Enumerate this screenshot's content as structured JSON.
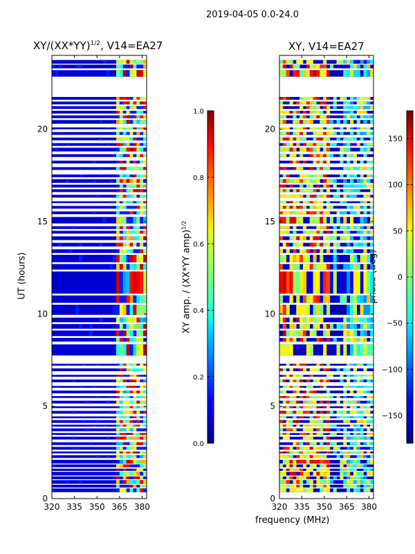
{
  "suptitle": "2019-04-05 0.0-24.0",
  "chart_data": [
    {
      "type": "heatmap",
      "title_main": "XY/(XX*YY)",
      "title_sup": "1/2",
      "title_tail": ", V14=EA27",
      "xlabel": "",
      "ylabel": "UT (hours)",
      "xlim": [
        320,
        383
      ],
      "ylim": [
        0,
        24
      ],
      "xticks": [
        "320",
        "335",
        "350",
        "365",
        "380"
      ],
      "xtick_values": [
        320,
        335,
        350,
        365,
        380
      ],
      "yticks": [
        "0",
        "5",
        "10",
        "15",
        "20"
      ],
      "ytick_values": [
        0,
        5,
        10,
        15,
        20
      ],
      "colorbar": {
        "label_main": "XY amp. / (XX*YY amp)",
        "label_sup": "1/2",
        "range": [
          0.0,
          1.0
        ],
        "ticks": [
          "0.0",
          "0.2",
          "0.4",
          "0.6",
          "0.8",
          "1.0"
        ],
        "tick_values": [
          0.0,
          0.2,
          0.4,
          0.6,
          0.8,
          1.0
        ],
        "colormap": "jet"
      },
      "data_description_band_mhz": [
        362,
        382
      ],
      "background_value": 0.05,
      "band_values": [
        0.35,
        0.45,
        0.55,
        0.65
      ]
    },
    {
      "type": "heatmap",
      "title_main": "XY, V14=EA27",
      "title_sup": "",
      "title_tail": "",
      "xlabel": "frequency (MHz)",
      "ylabel": "",
      "xlim": [
        320,
        383
      ],
      "ylim": [
        0,
        24
      ],
      "xticks": [
        "320",
        "335",
        "350",
        "365",
        "380"
      ],
      "xtick_values": [
        320,
        335,
        350,
        365,
        380
      ],
      "yticks": [
        "0",
        "5",
        "10",
        "15",
        "20"
      ],
      "ytick_values": [
        0,
        5,
        10,
        15,
        20
      ],
      "colorbar": {
        "label_main": "phase (deg)",
        "label_sup": "",
        "range": [
          -180,
          180
        ],
        "ticks": [
          "−150",
          "−100",
          "−50",
          "0",
          "50",
          "100",
          "150"
        ],
        "tick_values": [
          -150,
          -100,
          -50,
          0,
          50,
          100,
          150
        ],
        "colormap": "jet"
      },
      "background_value": -170
    }
  ],
  "time_rows_hours": [
    [
      0.35,
      0.55
    ],
    [
      0.6,
      0.75
    ],
    [
      0.8,
      1.0
    ],
    [
      1.05,
      1.2
    ],
    [
      1.25,
      1.45
    ],
    [
      1.5,
      1.62
    ],
    [
      1.7,
      1.85
    ],
    [
      1.9,
      2.1
    ],
    [
      2.2,
      2.35
    ],
    [
      2.45,
      2.55
    ],
    [
      2.65,
      2.8
    ],
    [
      2.9,
      3.05
    ],
    [
      3.2,
      3.35
    ],
    [
      3.45,
      3.55
    ],
    [
      3.65,
      3.8
    ],
    [
      3.9,
      4.0
    ],
    [
      4.1,
      4.25
    ],
    [
      4.35,
      4.45
    ],
    [
      4.6,
      4.75
    ],
    [
      4.9,
      5.0
    ],
    [
      5.15,
      5.3
    ],
    [
      5.45,
      5.55
    ],
    [
      5.7,
      5.85
    ],
    [
      6.0,
      6.1
    ],
    [
      6.3,
      6.45
    ],
    [
      6.6,
      6.7
    ],
    [
      6.9,
      7.05
    ],
    [
      7.2,
      7.3
    ],
    [
      7.75,
      8.35
    ],
    [
      8.5,
      8.7
    ],
    [
      8.8,
      9.1
    ],
    [
      9.2,
      9.45
    ],
    [
      9.55,
      9.8
    ],
    [
      9.95,
      10.5
    ],
    [
      10.6,
      11.0
    ],
    [
      11.1,
      12.3
    ],
    [
      12.4,
      12.7
    ],
    [
      12.8,
      13.2
    ],
    [
      13.3,
      13.5
    ],
    [
      13.65,
      13.85
    ],
    [
      14.0,
      14.2
    ],
    [
      14.35,
      14.5
    ],
    [
      14.6,
      14.75
    ],
    [
      14.9,
      15.25
    ],
    [
      15.4,
      15.55
    ],
    [
      15.7,
      15.85
    ],
    [
      16.0,
      16.1
    ],
    [
      16.3,
      16.45
    ],
    [
      16.6,
      16.75
    ],
    [
      16.85,
      17.0
    ],
    [
      17.1,
      17.3
    ],
    [
      17.4,
      17.55
    ],
    [
      17.8,
      17.95
    ],
    [
      18.15,
      18.3
    ],
    [
      18.5,
      18.65
    ],
    [
      18.8,
      19.0
    ],
    [
      19.1,
      19.25
    ],
    [
      19.4,
      19.55
    ],
    [
      19.7,
      19.85
    ],
    [
      20.0,
      20.1
    ],
    [
      20.3,
      20.5
    ],
    [
      20.6,
      20.75
    ],
    [
      20.85,
      21.0
    ],
    [
      21.1,
      21.25
    ],
    [
      21.35,
      21.5
    ],
    [
      21.6,
      21.75
    ],
    [
      22.85,
      23.2
    ],
    [
      23.3,
      23.5
    ],
    [
      23.55,
      23.75
    ]
  ]
}
